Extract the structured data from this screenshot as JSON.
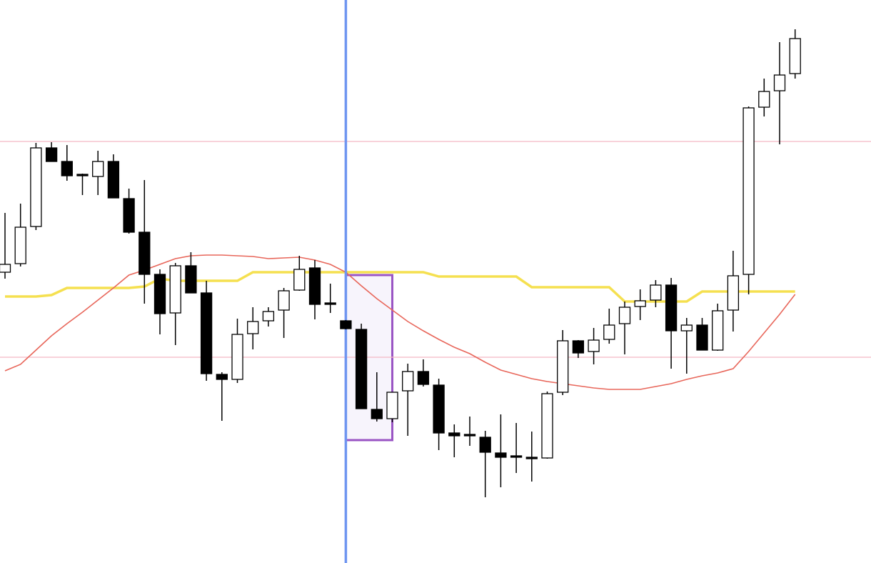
{
  "chart_data": {
    "type": "candlestick",
    "ylim": [
      0,
      788
    ],
    "up_color": "#ffffff",
    "down_color": "#000000",
    "outline_color": "#000000",
    "open": [
      407,
      419,
      471,
      581,
      562,
      544,
      541,
      562,
      510,
      463,
      404,
      350,
      416,
      378,
      264,
      257,
      321,
      339,
      354,
      382,
      413,
      364,
      339,
      327,
      215,
      202,
      241,
      268,
      249,
      182,
      180,
      176,
      154,
      150,
      148,
      147,
      239,
      311,
      296,
      313,
      335,
      359,
      368,
      389,
      325,
      333,
      298,
      354,
      404,
      638,
      661,
      685
    ],
    "high": [
      490,
      503,
      588,
      589,
      585,
      545,
      577,
      572,
      524,
      536,
      411,
      420,
      435,
      395,
      267,
      342,
      358,
      358,
      385,
      430,
      424,
      391,
      340,
      335,
      267,
      239,
      279,
      285,
      258,
      194,
      205,
      185,
      208,
      196,
      184,
      240,
      326,
      312,
      329,
      356,
      366,
      383,
      396,
      399,
      343,
      343,
      363,
      437,
      639,
      678,
      729,
      747
    ],
    "low": [
      398,
      415,
      466,
      562,
      535,
      515,
      515,
      511,
      461,
      363,
      320,
      305,
      378,
      255,
      199,
      252,
      299,
      331,
      315,
      381,
      341,
      350,
      327,
      216,
      198,
      197,
      178,
      247,
      158,
      148,
      164,
      92,
      106,
      126,
      114,
      146,
      235,
      287,
      278,
      307,
      292,
      340,
      358,
      272,
      265,
      298,
      297,
      324,
      376,
      625,
      586,
      678
    ],
    "close": [
      418,
      470,
      581,
      562,
      542,
      542,
      562,
      511,
      463,
      404,
      349,
      416,
      378,
      265,
      257,
      320,
      338,
      352,
      381,
      411,
      362,
      362,
      328,
      216,
      202,
      239,
      268,
      250,
      182,
      178,
      178,
      155,
      148,
      148,
      146,
      237,
      311,
      294,
      312,
      333,
      358,
      367,
      389,
      325,
      333,
      298,
      353,
      402,
      637,
      660,
      683,
      734
    ],
    "lines": [
      {
        "color": "#f5e050",
        "width": 3.5,
        "values": [
          373,
          373,
          373,
          375,
          385,
          385,
          385,
          385,
          385,
          387,
          398,
          395,
          395,
          395,
          395,
          395,
          407,
          407,
          407,
          407,
          407,
          407,
          407,
          407,
          407,
          407,
          407,
          407,
          401,
          401,
          401,
          401,
          401,
          401,
          386,
          386,
          386,
          386,
          386,
          386,
          366,
          366,
          366,
          366,
          366,
          380,
          380,
          380,
          380,
          380,
          380,
          380
        ]
      },
      {
        "color": "#e8665a",
        "width": 1.6,
        "values": [
          269,
          278,
          298,
          318,
          335,
          351,
          368,
          385,
          403,
          410,
          418,
          426,
          430,
          431,
          431,
          430,
          429,
          426,
          427,
          428,
          424,
          418,
          407,
          388,
          370,
          354,
          338,
          325,
          313,
          302,
          293,
          281,
          270,
          264,
          258,
          254,
          251,
          248,
          245,
          243,
          243,
          243,
          247,
          251,
          257,
          262,
          266,
          272,
          296,
          322,
          348,
          376
        ]
      }
    ],
    "hlines": [
      {
        "value": 590,
        "color": "#f4b8c4"
      },
      {
        "value": 288,
        "color": "#f4b8c4"
      }
    ],
    "vline": {
      "index": 22,
      "color": "#6f95f0"
    },
    "box": {
      "start": 22,
      "end": 25,
      "top": 403,
      "bottom": 172,
      "color": "#9a55c4",
      "fill": "#f7f4fc"
    }
  }
}
